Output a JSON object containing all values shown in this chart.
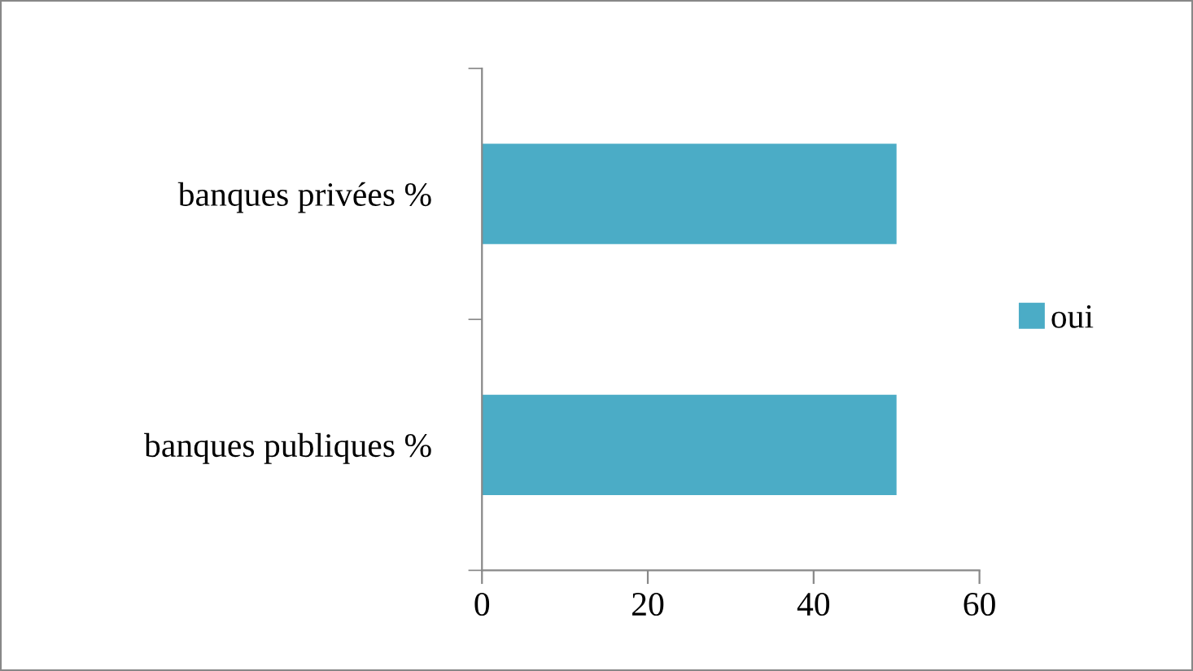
{
  "chart_data": {
    "type": "bar",
    "orientation": "horizontal",
    "categories": [
      "banques privées %",
      "banques publiques %"
    ],
    "series": [
      {
        "name": "oui",
        "color": "#4bacc6",
        "values": [
          50,
          50
        ]
      }
    ],
    "xlim": [
      0,
      60
    ],
    "xticks": [
      0,
      20,
      40,
      60
    ],
    "grid": false,
    "legend": "right"
  }
}
